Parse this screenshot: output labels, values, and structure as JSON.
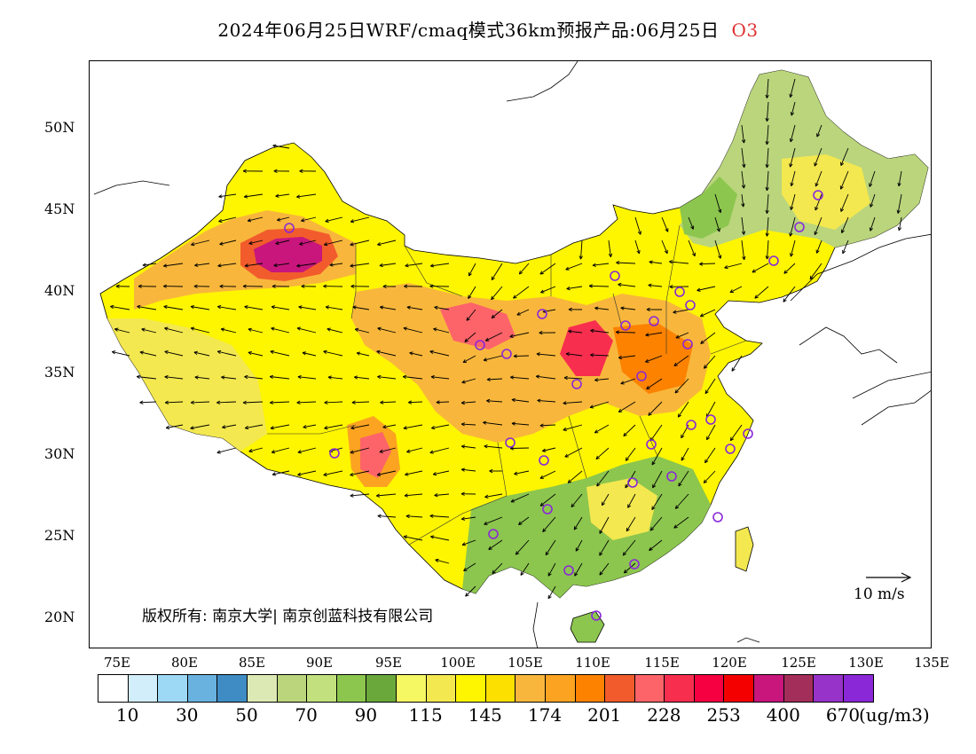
{
  "title": {
    "main": "2024年06月25日WRF/cmaq模式36km预报产品:06月25日",
    "variable": "O3",
    "variable_color": "#e03030"
  },
  "axes": {
    "lat_labels": [
      "50N",
      "45N",
      "40N",
      "35N",
      "30N",
      "25N",
      "20N"
    ],
    "lon_labels": [
      "75E",
      "80E",
      "85E",
      "90E",
      "95E",
      "100E",
      "105E",
      "110E",
      "115E",
      "120E",
      "125E",
      "130E",
      "135E"
    ]
  },
  "colorbar": {
    "colors": [
      "#ffffff",
      "#d2eefa",
      "#9dd8f4",
      "#69b2e0",
      "#3f8cc4",
      "#dde9b4",
      "#bad57c",
      "#c3e07e",
      "#8cc64e",
      "#6aa83c",
      "#f5f763",
      "#f3e84f",
      "#fef500",
      "#fce000",
      "#f8b73c",
      "#fca321",
      "#fc8200",
      "#f25c2c",
      "#fd6469",
      "#f82e4f",
      "#f60041",
      "#f50000",
      "#c8167c",
      "#a42e5a",
      "#9733c8",
      "#8a28d8"
    ],
    "labels": [
      "10",
      "30",
      "50",
      "70",
      "90",
      "115",
      "145",
      "174",
      "201",
      "228",
      "253",
      "400",
      "670"
    ],
    "unit": "(ug/m3)"
  },
  "copyright": "版权所有: 南京大学| 南京创蓝科技有限公司",
  "wind_reference": "10 m/s",
  "map_legend_colors": {
    "ocean": "#ffffff",
    "green": "#8cc64e",
    "light_green": "#bad57c",
    "yellow": "#fef500",
    "light_yellow": "#f3e84f",
    "orange": "#f8b73c",
    "dark_orange": "#fc8200",
    "red": "#fd6469",
    "magenta": "#c8167c",
    "site_marker": "#8a28d8"
  }
}
